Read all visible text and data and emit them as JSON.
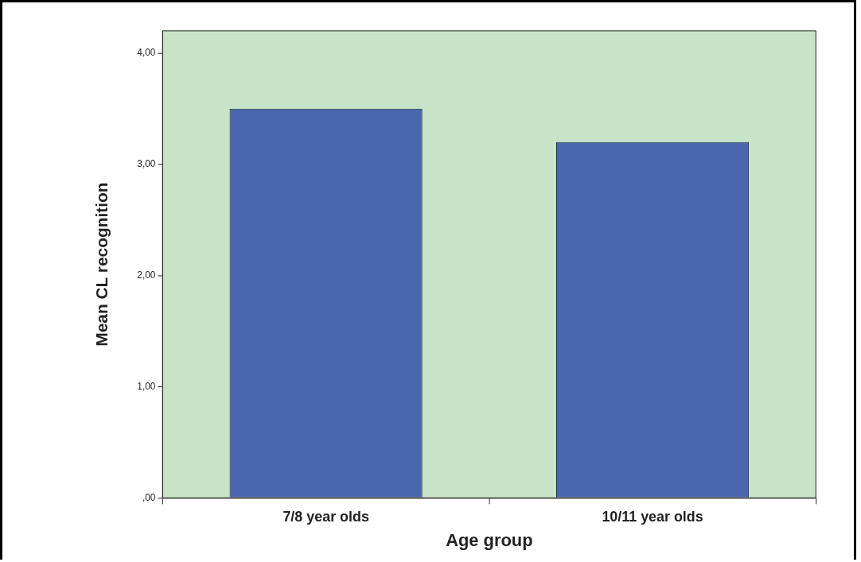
{
  "chart_data": {
    "type": "bar",
    "xlabel": "Age group",
    "ylabel": "Mean CL recognition",
    "categories": [
      "7/8 year olds",
      "10/11 year olds"
    ],
    "values": [
      3.5,
      3.2
    ],
    "color": "#4a67ae",
    "ylim": [
      0,
      4.2
    ],
    "yticks": [
      {
        "value": 0,
        "label": ",00"
      },
      {
        "value": 1,
        "label": "1,00"
      },
      {
        "value": 2,
        "label": "2,00"
      },
      {
        "value": 3,
        "label": "3,00"
      },
      {
        "value": 4,
        "label": "4,00"
      }
    ]
  }
}
